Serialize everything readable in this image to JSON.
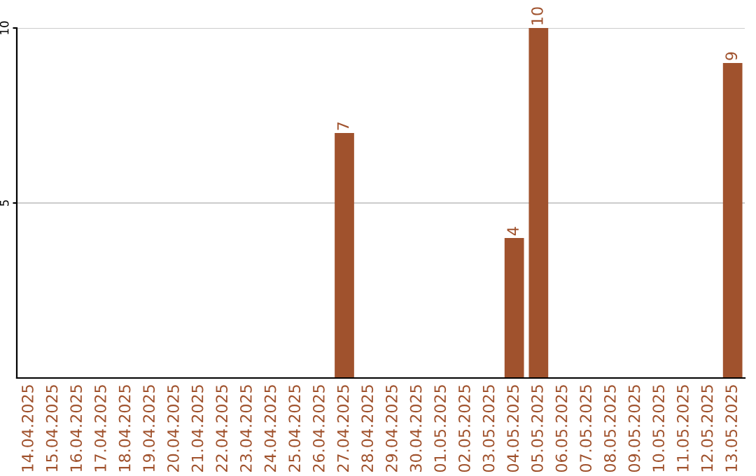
{
  "chart_data": {
    "type": "bar",
    "categories": [
      "14.04.2025",
      "15.04.2025",
      "16.04.2025",
      "17.04.2025",
      "18.04.2025",
      "19.04.2025",
      "20.04.2025",
      "21.04.2025",
      "22.04.2025",
      "23.04.2025",
      "24.04.2025",
      "25.04.2025",
      "26.04.2025",
      "27.04.2025",
      "28.04.2025",
      "29.04.2025",
      "30.04.2025",
      "01.05.2025",
      "02.05.2025",
      "03.05.2025",
      "04.05.2025",
      "05.05.2025",
      "06.05.2025",
      "07.05.2025",
      "08.05.2025",
      "09.05.2025",
      "10.05.2025",
      "11.05.2025",
      "12.05.2025",
      "13.05.2025"
    ],
    "values": [
      0,
      0,
      0,
      0,
      0,
      0,
      0,
      0,
      0,
      0,
      0,
      0,
      0,
      7,
      0,
      0,
      0,
      0,
      0,
      0,
      4,
      10,
      0,
      0,
      0,
      0,
      0,
      0,
      0,
      9
    ],
    "value_labels": [
      null,
      null,
      null,
      null,
      null,
      null,
      null,
      null,
      null,
      null,
      null,
      null,
      null,
      "7",
      null,
      null,
      null,
      null,
      null,
      null,
      "4",
      "10",
      null,
      null,
      null,
      null,
      null,
      null,
      null,
      "9"
    ],
    "color": "#a0522d",
    "ylim": [
      0,
      10
    ],
    "yticks": [
      5,
      10
    ],
    "grid": "y"
  }
}
